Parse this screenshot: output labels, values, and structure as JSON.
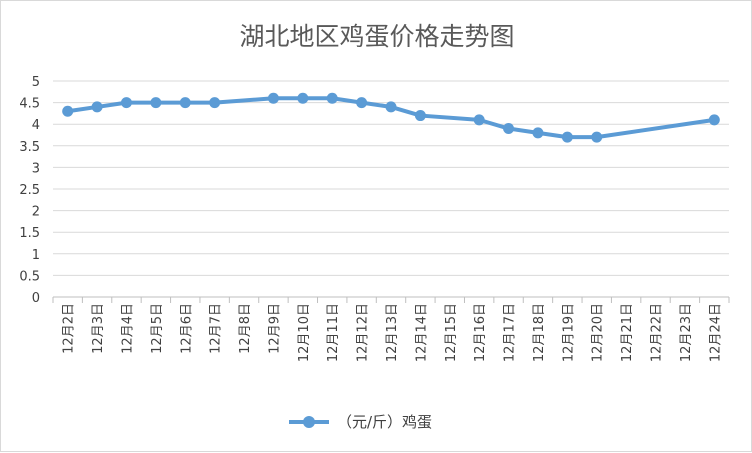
{
  "chart_data": {
    "type": "line",
    "title": "湖北地区鸡蛋价格走势图",
    "xlabel": "",
    "ylabel": "",
    "categories": [
      "12月2日",
      "12月3日",
      "12月4日",
      "12月5日",
      "12月6日",
      "12月7日",
      "12月8日",
      "12月9日",
      "12月10日",
      "12月11日",
      "12月12日",
      "12月13日",
      "12月14日",
      "12月15日",
      "12月16日",
      "12月17日",
      "12月18日",
      "12月19日",
      "12月20日",
      "12月21日",
      "12月22日",
      "12月23日",
      "12月24日"
    ],
    "series": [
      {
        "name": "（元/斤）鸡蛋",
        "color": "#5b9bd5",
        "values": [
          4.3,
          4.4,
          4.5,
          4.5,
          4.5,
          4.5,
          null,
          4.6,
          4.6,
          4.6,
          4.5,
          4.4,
          4.2,
          null,
          4.1,
          3.9,
          3.8,
          3.7,
          3.7,
          null,
          null,
          null,
          4.1
        ]
      }
    ],
    "ylim": [
      0,
      5
    ],
    "yticks": [
      "0",
      "0.5",
      "1",
      "1.5",
      "2",
      "2.5",
      "3",
      "3.5",
      "4",
      "4.5",
      "5"
    ],
    "grid": true,
    "legend": "bottom"
  }
}
